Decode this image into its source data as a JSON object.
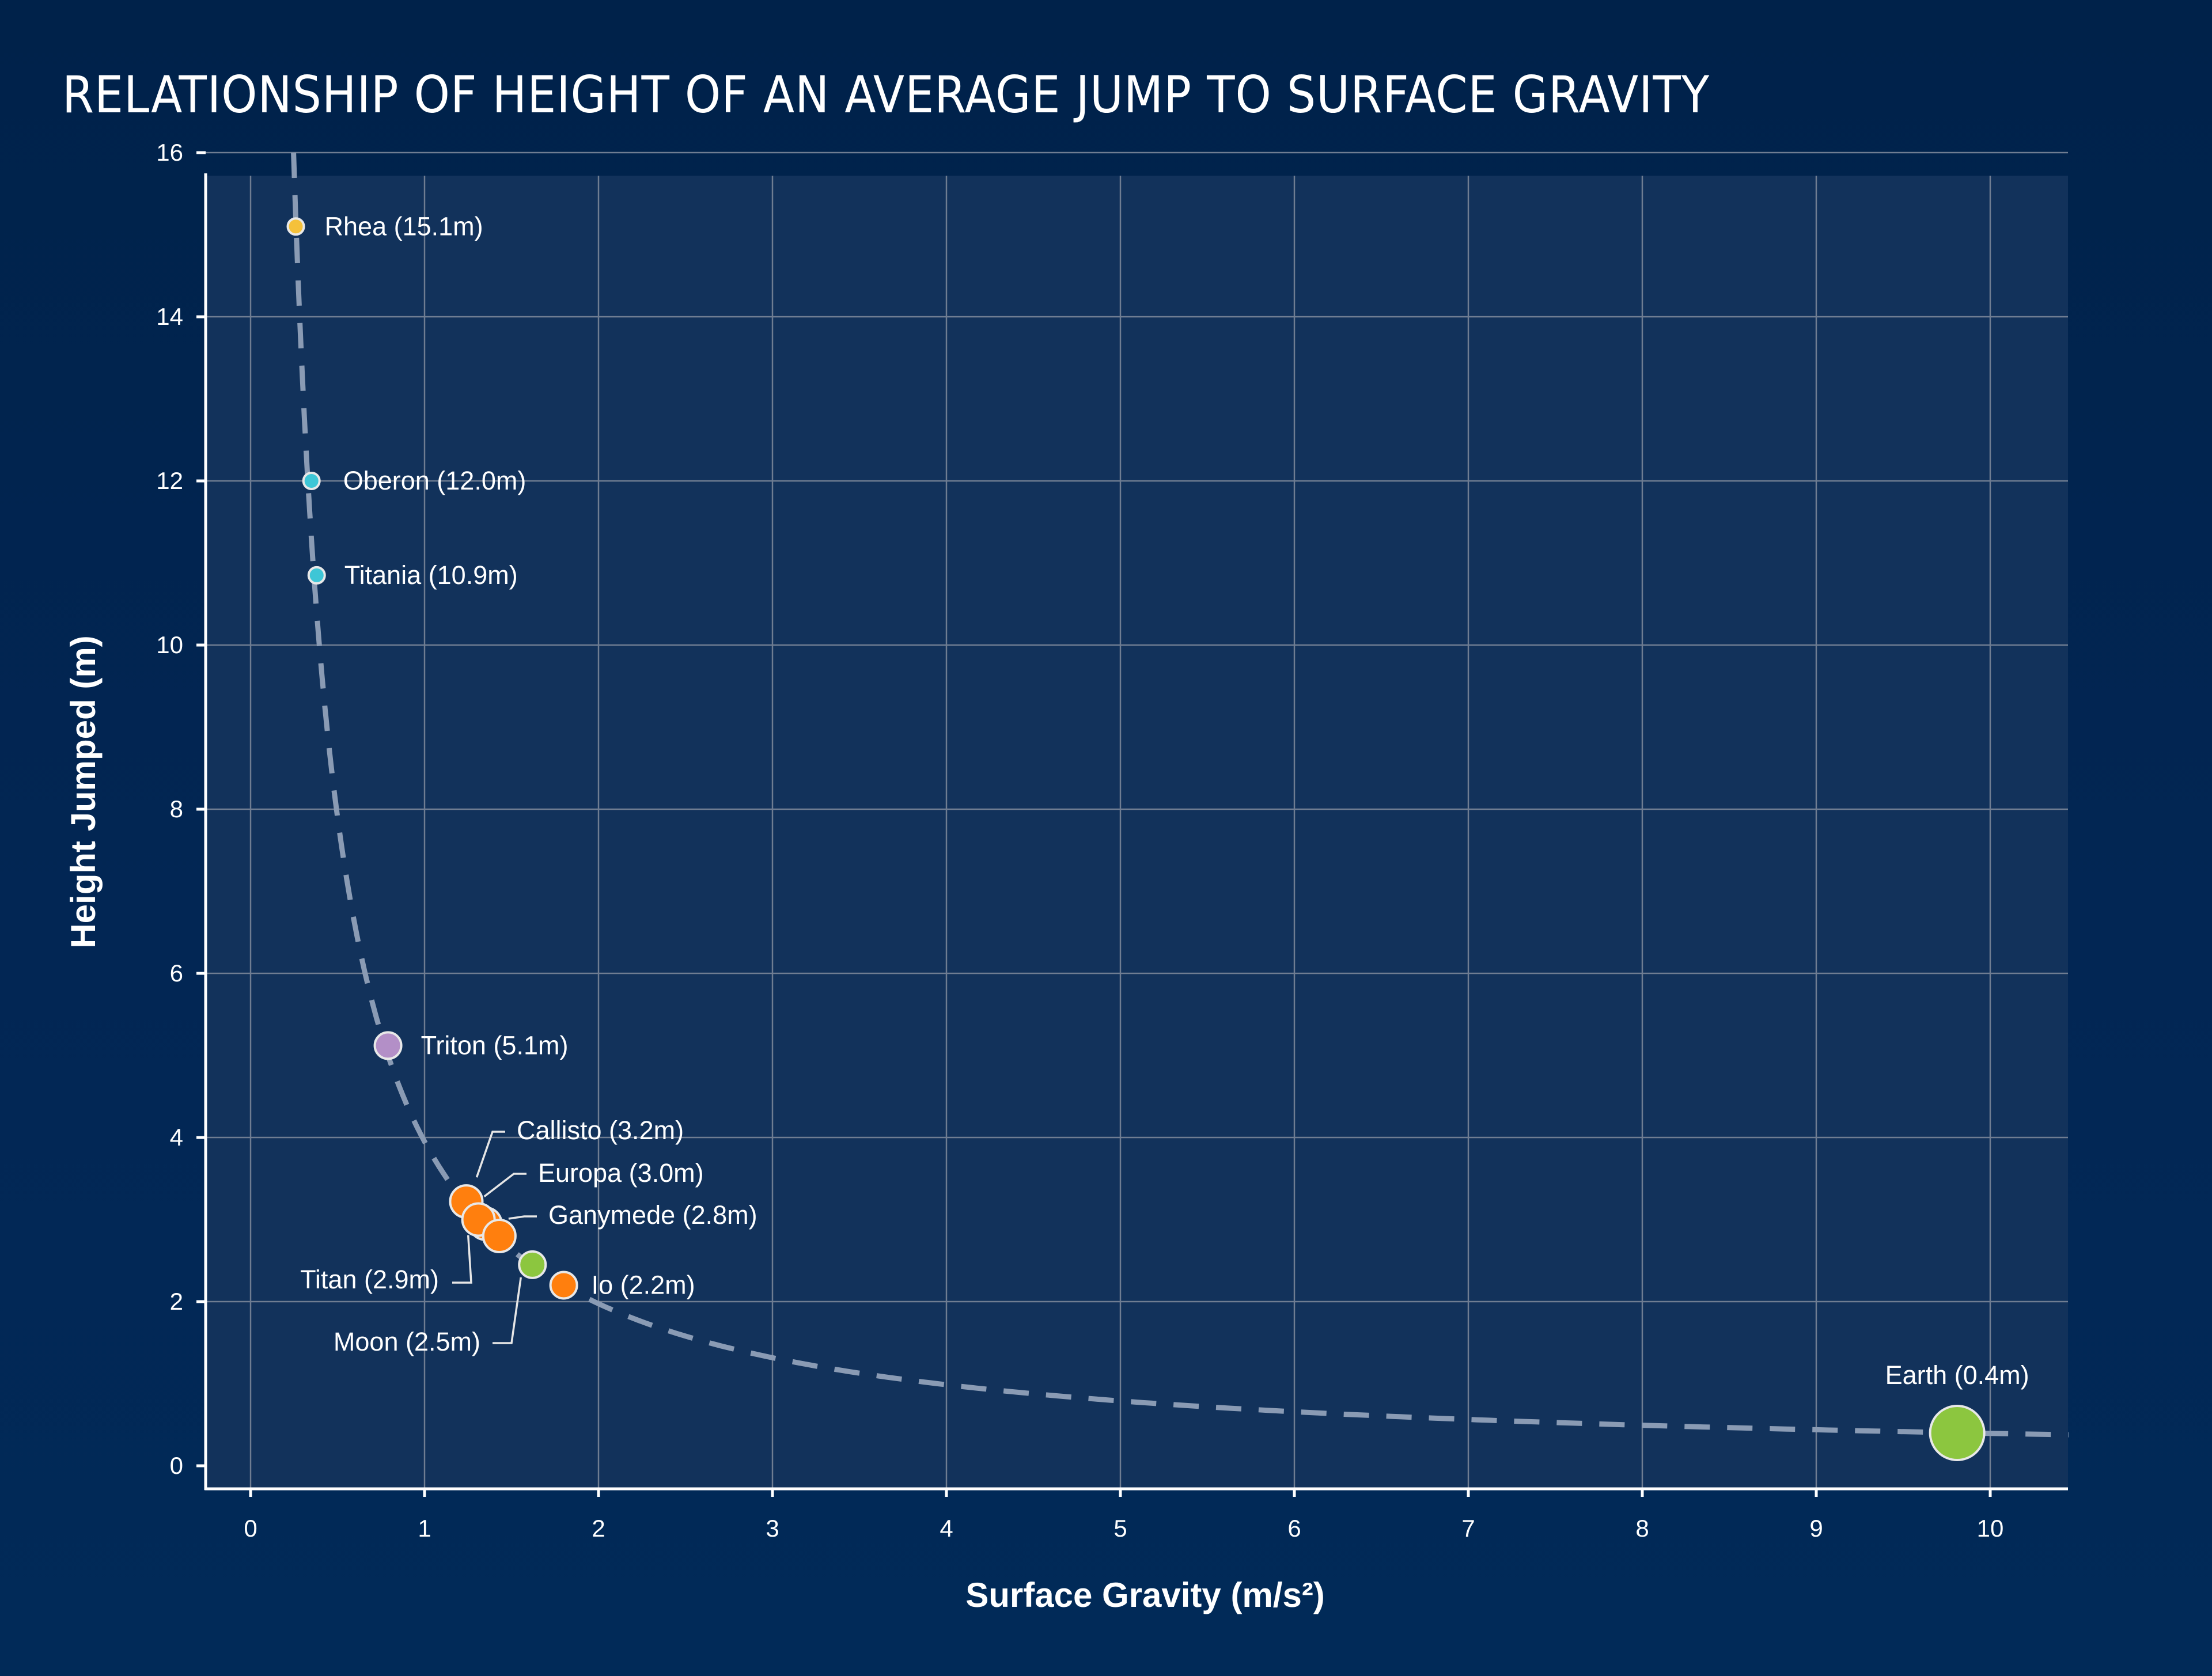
{
  "chart_data": {
    "type": "scatter",
    "title": "Relationship of Height of an Average Jump to Surface Gravity",
    "xlabel": "Surface Gravity (m/s²)",
    "ylabel": "Height Jumped (m)",
    "xlim": [
      -0.27,
      10.45
    ],
    "ylim": [
      -0.25,
      16
    ],
    "xticks": [
      "0",
      "1",
      "2",
      "3",
      "4",
      "5",
      "6",
      "7",
      "8",
      "9",
      "10"
    ],
    "yticks": [
      "0",
      "2",
      "4",
      "6",
      "8",
      "10",
      "12",
      "14",
      "16"
    ],
    "grid": true,
    "trend_line": {
      "style": "dashed",
      "relationship": "y = k / x",
      "k": 3.95
    },
    "points": [
      {
        "name": "Rhea",
        "label": "Rhea (15.1m)",
        "x": 0.26,
        "y": 15.1,
        "color": "#f5c13a",
        "size": "small"
      },
      {
        "name": "Oberon",
        "label": "Oberon (12.0m)",
        "x": 0.35,
        "y": 12.0,
        "color": "#3ec6d6",
        "size": "small"
      },
      {
        "name": "Titania",
        "label": "Titania (10.9m)",
        "x": 0.38,
        "y": 10.85,
        "color": "#3ec6d6",
        "size": "small"
      },
      {
        "name": "Triton",
        "label": "Triton (5.1m)",
        "x": 0.79,
        "y": 5.12,
        "color": "#b38fc7",
        "size": "medium"
      },
      {
        "name": "Callisto",
        "label": "Callisto (3.2m)",
        "x": 1.24,
        "y": 3.22,
        "color": "#ff7f0e",
        "size": "large"
      },
      {
        "name": "Titan",
        "label": "Titan (2.9m)",
        "x": 1.35,
        "y": 2.95,
        "color": "#ff7f0e",
        "size": "large"
      },
      {
        "name": "Europa",
        "label": "Europa (3.0m)",
        "x": 1.31,
        "y": 3.0,
        "color": "#ff7f0e",
        "size": "large"
      },
      {
        "name": "Ganymede",
        "label": "Ganymede (2.8m)",
        "x": 1.43,
        "y": 2.8,
        "color": "#ff7f0e",
        "size": "large"
      },
      {
        "name": "Moon",
        "label": "Moon (2.5m)",
        "x": 1.62,
        "y": 2.45,
        "color": "#8cc63f",
        "size": "medium"
      },
      {
        "name": "Io",
        "label": "Io (2.2m)",
        "x": 1.8,
        "y": 2.2,
        "color": "#ff7f0e",
        "size": "medium"
      },
      {
        "name": "Earth",
        "label": "Earth (0.4m)",
        "x": 9.81,
        "y": 0.4,
        "color": "#8cc63f",
        "size": "xlarge"
      }
    ]
  },
  "colors": {
    "plot_background": "#12325b",
    "grid": "#6f7d92",
    "trend_line": "#8a9bb4"
  }
}
